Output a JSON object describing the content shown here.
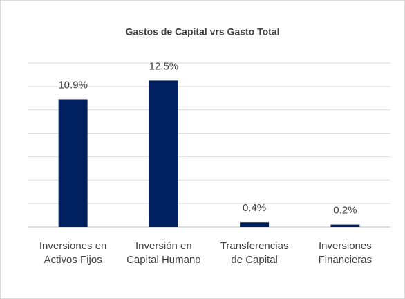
{
  "chart_data": {
    "type": "bar",
    "title": "Gastos de Capital vrs Gasto Total",
    "categories": [
      "Inversiones en Activos Fijos",
      "Inversión en Capital Humano",
      "Transferencias de Capital",
      "Inversiones Financieras"
    ],
    "values": [
      10.9,
      12.5,
      0.4,
      0.2
    ],
    "value_labels": [
      "10.9%",
      "12.5%",
      "0.4%",
      "0.2%"
    ],
    "color": "#002060",
    "ylim": [
      0,
      14
    ],
    "yticks": [
      0,
      2,
      4,
      6,
      8,
      10,
      12,
      14
    ],
    "ytick_labels": false,
    "grid": true
  }
}
